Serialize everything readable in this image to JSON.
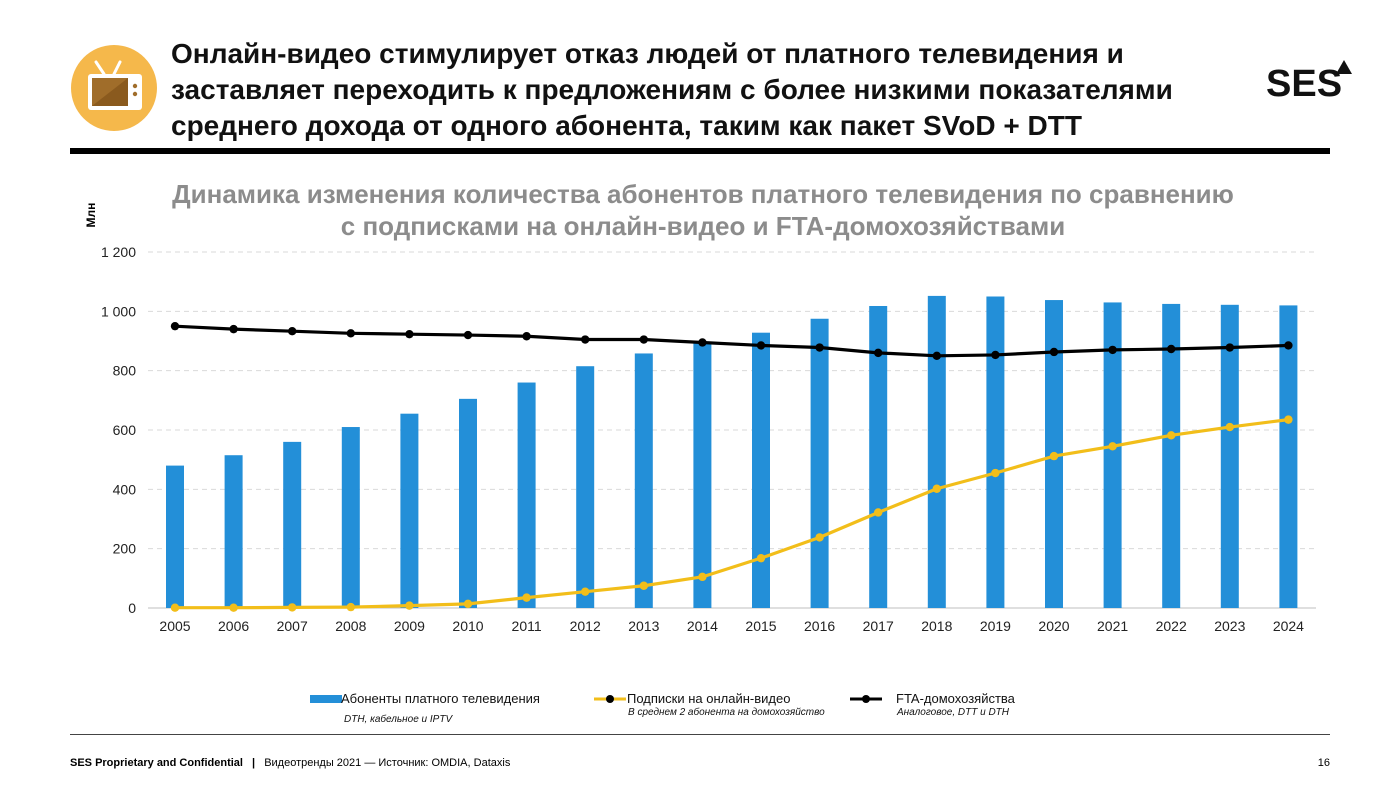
{
  "header": {
    "title_lines": [
      "Онлайн-видео стимулирует отказ людей от платного телевидения и",
      "заставляет переходить к предложениям с более низкими показателями",
      "среднего дохода от одного абонента, таким как пакет SVoD + DTT"
    ],
    "logo_text": "SES"
  },
  "colors": {
    "bars": "#238fd8",
    "online_video": "#f2be1a",
    "fta": "#000000",
    "icon_bg": "#f5b84b",
    "title_gray": "#8c8c8c"
  },
  "chart_data": {
    "type": "bar",
    "title_lines": [
      "Динамика изменения количества абонентов платного телевидения по сравнению",
      "с подписками на онлайн-видео и FTA-домохозяйствами"
    ],
    "ylabel": "Млн",
    "xlabel": "",
    "ylim": [
      0,
      1200
    ],
    "yticks": [
      0,
      200,
      400,
      600,
      800,
      1000,
      1200
    ],
    "ytick_labels": [
      "0",
      "200",
      "400",
      "600",
      "800",
      "1 000",
      "1 200"
    ],
    "grid": true,
    "categories": [
      "2005",
      "2006",
      "2007",
      "2008",
      "2009",
      "2010",
      "2011",
      "2012",
      "2013",
      "2014",
      "2015",
      "2016",
      "2017",
      "2018",
      "2019",
      "2020",
      "2021",
      "2022",
      "2023",
      "2024"
    ],
    "series": [
      {
        "name": "Абоненты платного телевидения",
        "type": "bar",
        "note": "DTH, кабельное и IPTV",
        "values": [
          480,
          515,
          560,
          610,
          655,
          705,
          760,
          815,
          858,
          895,
          928,
          975,
          1018,
          1052,
          1050,
          1038,
          1030,
          1025,
          1022,
          1020
        ]
      },
      {
        "name": "Подписки на онлайн-видео",
        "type": "line",
        "note": "В среднем 2 абонента на домохозяйство",
        "values": [
          1,
          1,
          2,
          3,
          8,
          14,
          35,
          55,
          75,
          105,
          168,
          238,
          322,
          402,
          455,
          512,
          545,
          582,
          610,
          635
        ]
      },
      {
        "name": "FTA-домохозяйства",
        "type": "line",
        "note": "Аналоговое, DTT и DTH",
        "values": [
          950,
          940,
          933,
          926,
          923,
          920,
          916,
          905,
          905,
          895,
          885,
          878,
          860,
          850,
          853,
          863,
          870,
          873,
          878,
          885
        ]
      }
    ],
    "legend_position": "bottom"
  },
  "footer": {
    "confidential": "SES Proprietary and Confidential",
    "separator": "|",
    "source": "Видеотренды 2021 — Источник: OMDIA, Dataxis",
    "page_number": "16"
  }
}
